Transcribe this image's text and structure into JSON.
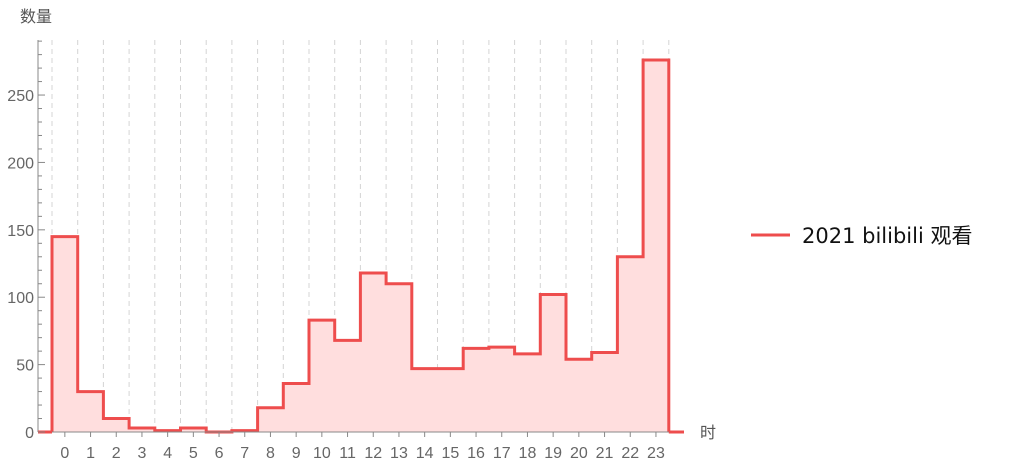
{
  "chart_data": {
    "type": "bar",
    "categories": [
      "0",
      "1",
      "2",
      "3",
      "4",
      "5",
      "6",
      "7",
      "8",
      "9",
      "10",
      "11",
      "12",
      "13",
      "14",
      "15",
      "16",
      "17",
      "18",
      "19",
      "20",
      "21",
      "22",
      "23"
    ],
    "series": [
      {
        "name": "2021 bilibili 观看",
        "values": [
          145,
          30,
          10,
          3,
          1,
          3,
          0,
          1,
          18,
          36,
          83,
          68,
          118,
          110,
          47,
          47,
          62,
          63,
          58,
          102,
          54,
          59,
          130,
          276
        ]
      }
    ],
    "xlabel": "时",
    "ylabel": "数量",
    "ylim": [
      0,
      290
    ],
    "yticks": [
      "0",
      "50",
      "100",
      "150",
      "200",
      "250"
    ],
    "grid": "vertical dashed",
    "legend": "right",
    "colors": {
      "line": "#ee4d4d",
      "fill": "#ffdede",
      "grid": "#d4d4d4",
      "axis": "#888888"
    }
  }
}
